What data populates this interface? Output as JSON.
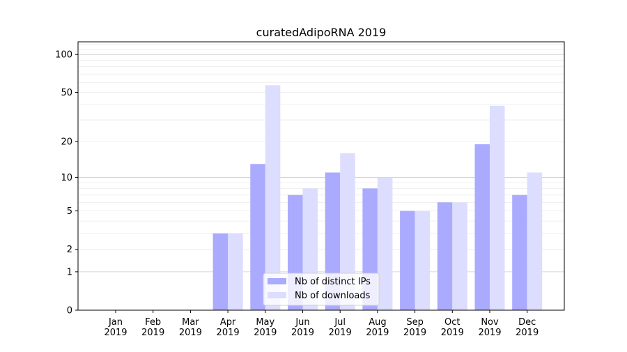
{
  "chart_data": {
    "type": "bar",
    "title": "curatedAdipoRNA 2019",
    "xlabel": "",
    "ylabel": "",
    "yscale": "log10(1+y)",
    "ylim": [
      0,
      120
    ],
    "yticks": [
      0,
      1,
      2,
      5,
      10,
      20,
      50,
      100
    ],
    "grid": true,
    "legend_position": "bottom-center",
    "categories": [
      "Jan\n2019",
      "Feb\n2019",
      "Mar\n2019",
      "Apr\n2019",
      "May\n2019",
      "Jun\n2019",
      "Jul\n2019",
      "Aug\n2019",
      "Sep\n2019",
      "Oct\n2019",
      "Nov\n2019",
      "Dec\n2019"
    ],
    "series": [
      {
        "name": "Nb of distinct IPs",
        "color": "#aaaaff",
        "values": [
          0,
          0,
          0,
          3,
          13,
          7,
          11,
          8,
          5,
          6,
          19,
          7
        ]
      },
      {
        "name": "Nb of downloads",
        "color": "#ddddff",
        "values": [
          0,
          0,
          0,
          3,
          57,
          8,
          16,
          10,
          5,
          6,
          39,
          11
        ]
      }
    ]
  }
}
